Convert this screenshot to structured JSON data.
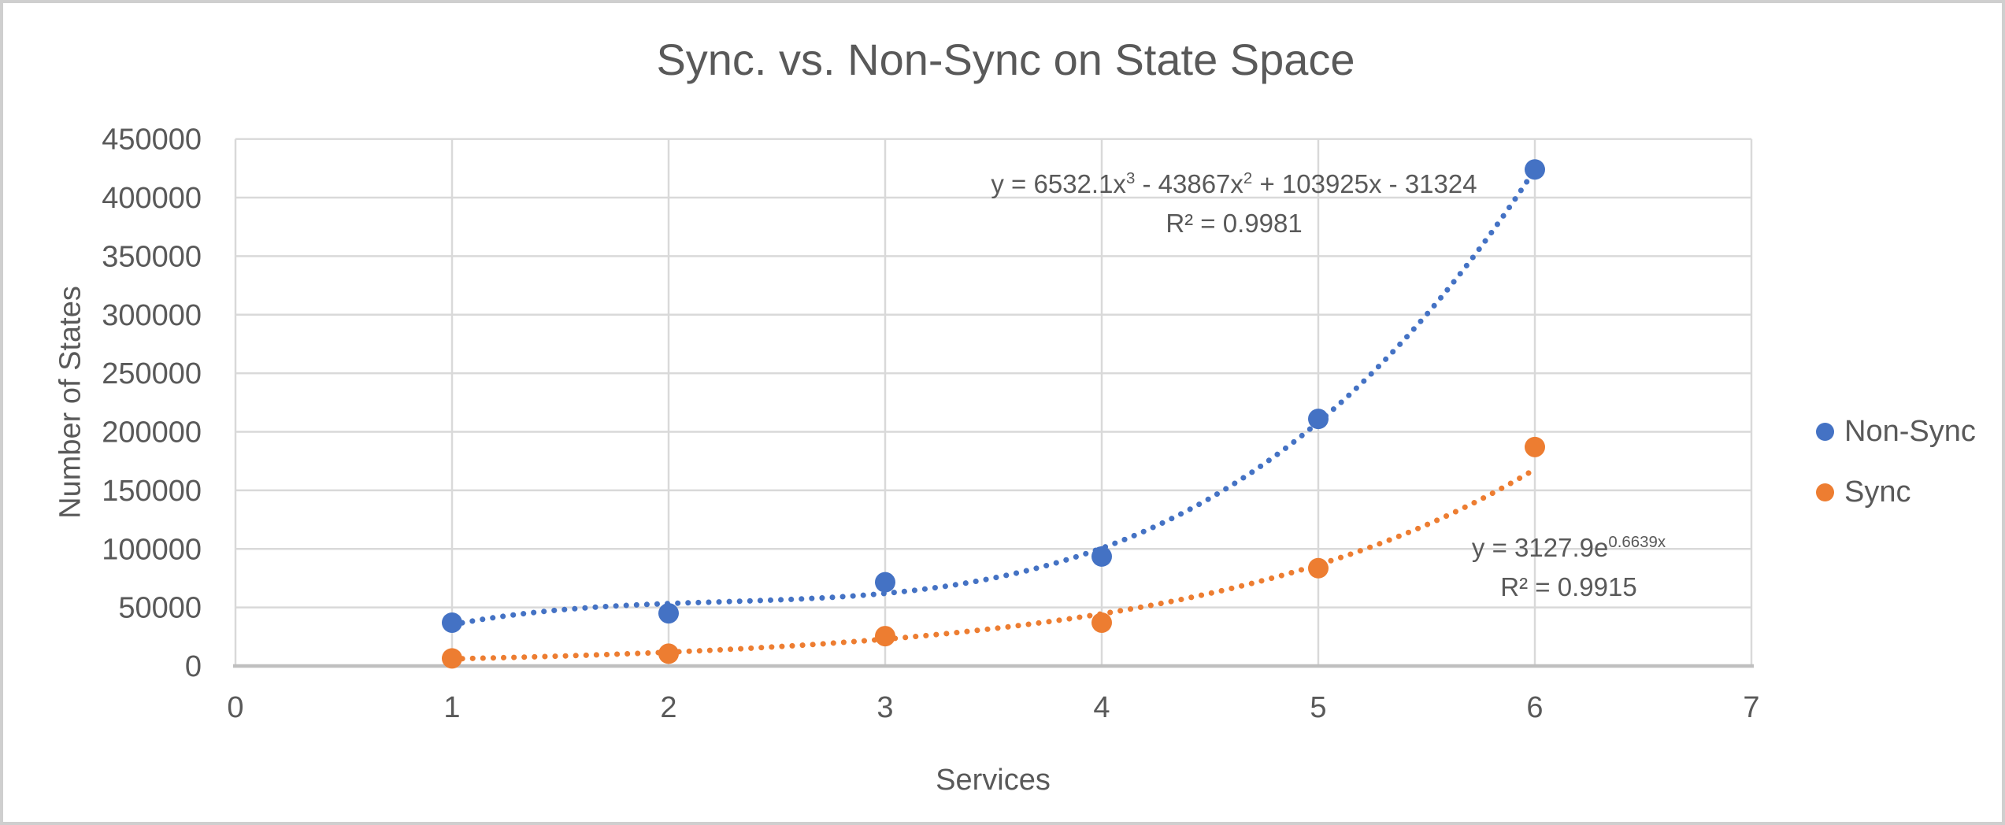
{
  "window": {
    "background": "#ffffff",
    "frame_border_color": "#cfcfcf"
  },
  "chart_data": {
    "type": "scatter",
    "title": "Sync. vs. Non-Sync on State Space",
    "xlabel": "Services",
    "ylabel": "Number of States",
    "xlim": [
      0,
      7
    ],
    "ylim": [
      0,
      450000
    ],
    "x_ticks": [
      0,
      1,
      2,
      3,
      4,
      5,
      6,
      7
    ],
    "y_ticks": [
      0,
      50000,
      100000,
      150000,
      200000,
      250000,
      300000,
      350000,
      400000,
      450000
    ],
    "grid": true,
    "legend_position": "right",
    "marker_style": "filled-circle",
    "trendline_style": "dotted",
    "colors": {
      "text": "#595959",
      "gridline": "#D9D9D9",
      "axis_line": "#BFBFBF"
    },
    "series": [
      {
        "name": "Non-Sync",
        "color": "#4472C4",
        "x": [
          1,
          2,
          3,
          4,
          5,
          6
        ],
        "y": [
          37000,
          45000,
          71500,
          93500,
          211000,
          424000
        ],
        "trendline": {
          "type": "polynomial-cubic",
          "coefficients": {
            "x3": 6532.1,
            "x2": -43867,
            "x1": 103925,
            "c": -31324
          },
          "range": [
            1,
            6
          ],
          "equation_segments": [
            {
              "t": "y = 6532.1x"
            },
            {
              "sup": "3"
            },
            {
              "t": " - 43867x"
            },
            {
              "sup": "2"
            },
            {
              "t": " + 103925x - 31324"
            }
          ],
          "r2_label": "R² = 0.9981"
        }
      },
      {
        "name": "Sync",
        "color": "#ED7D31",
        "x": [
          1,
          2,
          3,
          4,
          5,
          6
        ],
        "y": [
          6500,
          10500,
          25500,
          37000,
          83500,
          187000
        ],
        "trendline": {
          "type": "exponential",
          "coefficients": {
            "a": 3127.9,
            "b": 0.6639
          },
          "range": [
            1,
            6
          ],
          "equation_segments": [
            {
              "t": "y = 3127.9e"
            },
            {
              "sup": "0.6639x"
            }
          ],
          "r2_label": "R² = 0.9915"
        }
      }
    ]
  }
}
